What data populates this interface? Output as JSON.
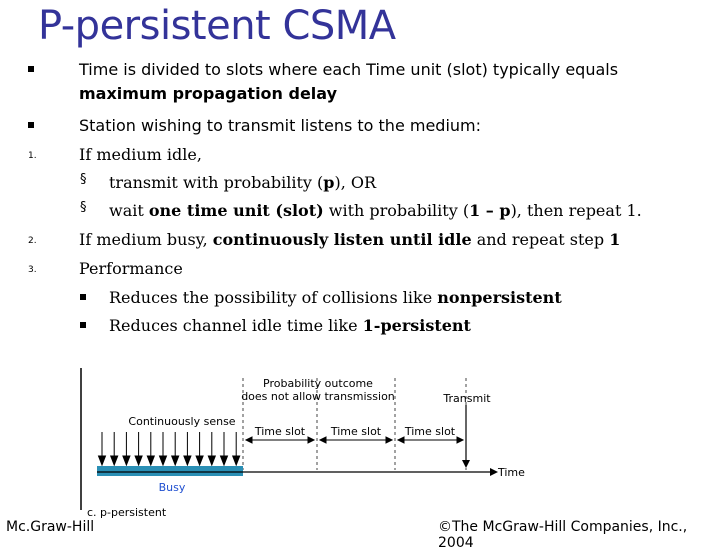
{
  "title": "P-persistent CSMA",
  "bullets": [
    {
      "marker": "square",
      "runs": [
        {
          "t": "Time is divided to slots where each Time unit (slot) typically equals"
        }
      ],
      "runs2": [
        {
          "t": "maximum propagation delay",
          "b": true
        }
      ]
    },
    {
      "marker": "square",
      "runs": [
        {
          "t": "Station wishing to transmit listens to the medium:"
        }
      ]
    },
    {
      "marker": "1.",
      "runs": [
        {
          "t": "If medium idle,"
        }
      ]
    },
    {
      "marker": "§",
      "runs": [
        {
          "t": "transmit with probability ("
        },
        {
          "t": "p",
          "b": true
        },
        {
          "t": "), OR"
        }
      ]
    },
    {
      "marker": "§",
      "runs": [
        {
          "t": "wait "
        },
        {
          "t": "one time unit (slot)",
          "b": true
        },
        {
          "t": " with probability ("
        },
        {
          "t": "1 – p",
          "b": true
        },
        {
          "t": "), then repeat 1."
        }
      ]
    },
    {
      "marker": "2.",
      "runs": [
        {
          "t": "If medium busy, "
        },
        {
          "t": "continuously listen until idle",
          "b": true
        },
        {
          "t": " and repeat step "
        },
        {
          "t": "1",
          "b": true
        }
      ]
    },
    {
      "marker": "3.",
      "runs": [
        {
          "t": "Performance"
        }
      ]
    },
    {
      "marker": "square",
      "runs": [
        {
          "t": "Reduces the possibility of collisions like "
        },
        {
          "t": "nonpersistent",
          "b": true
        }
      ]
    },
    {
      "marker": "square",
      "runs": [
        {
          "t": "Reduces channel idle time like "
        },
        {
          "t": "1-persistent",
          "b": true
        }
      ]
    }
  ],
  "diagram": {
    "label_outcome_line1": "Probability outcome",
    "label_outcome_line2": "does not allow transmission",
    "label_transmit": "Transmit",
    "label_sense": "Continuously sense",
    "slot_labels": [
      "Time slot",
      "Time slot",
      "Time slot"
    ],
    "label_time": "Time",
    "label_busy": "Busy",
    "caption": "c. p-persistent",
    "colors": {
      "busy": "#2a8fb5",
      "busy_text": "#1f4fd0"
    }
  },
  "footer": {
    "left": "Mc.Graw-Hill",
    "right": "©The McGraw-Hill Companies, Inc., 2004"
  }
}
